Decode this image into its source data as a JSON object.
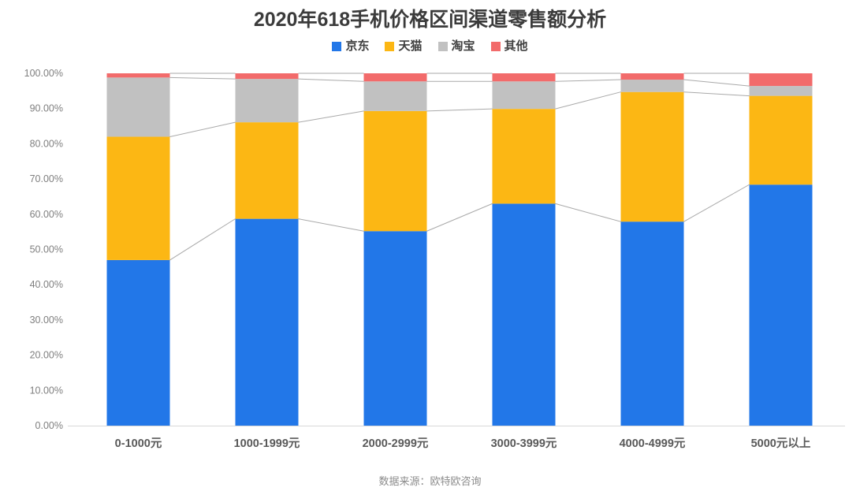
{
  "title": "2020年618手机价格区间渠道零售额分析",
  "footer": "数据来源：欧特欧咨询",
  "chart_data": {
    "type": "bar",
    "stacked": true,
    "percent_stacked": true,
    "title": "2020年618手机价格区间渠道零售额分析",
    "categories": [
      "0-1000元",
      "1000-1999元",
      "2000-2999元",
      "3000-3999元",
      "4000-4999元",
      "5000元以上"
    ],
    "series": [
      {
        "name": "京东",
        "color": "#2277e8",
        "values": [
          47.0,
          58.7,
          55.2,
          63.0,
          57.9,
          68.4
        ]
      },
      {
        "name": "天猫",
        "color": "#fcb714",
        "values": [
          35.0,
          27.4,
          34.1,
          26.9,
          36.8,
          25.2
        ]
      },
      {
        "name": "淘宝",
        "color": "#c1c1c1",
        "values": [
          16.8,
          12.3,
          8.4,
          7.8,
          3.5,
          2.8
        ]
      },
      {
        "name": "其他",
        "color": "#f26b6b",
        "values": [
          1.2,
          1.6,
          2.3,
          2.3,
          1.8,
          3.6
        ]
      }
    ],
    "xlabel": "",
    "ylabel": "",
    "ylim": [
      0,
      100
    ],
    "ytick_step": 10,
    "ytick_labels": [
      "0.00%",
      "10.00%",
      "20.00%",
      "30.00%",
      "40.00%",
      "50.00%",
      "60.00%",
      "70.00%",
      "80.00%",
      "90.00%",
      "100.00%"
    ],
    "legend_position": "top",
    "grid": false,
    "connector_lines": true,
    "colors": {
      "connector_line": "#a9a9a9",
      "axis_line": "#d9d9d9",
      "ytick_text": "#7f7f7f",
      "xtick_text": "#595959",
      "title_text": "#3b3b3b",
      "legend_text": "#404040",
      "footer_text": "#8c8c8c"
    }
  }
}
